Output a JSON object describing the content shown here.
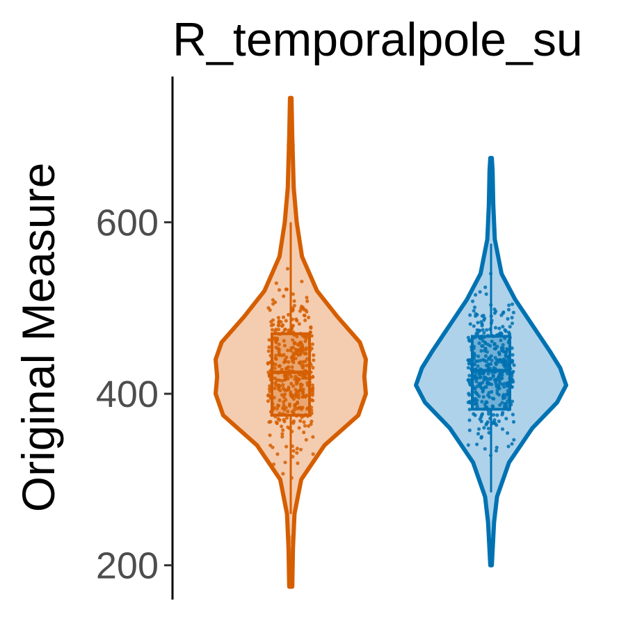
{
  "chart_data": {
    "type": "violin",
    "title": "R_temporalpole_su",
    "xlabel": "",
    "ylabel": "Original Measure",
    "ylim": [
      160,
      770
    ],
    "yticks": [
      200,
      400,
      600
    ],
    "grid": false,
    "legend": "none",
    "groups": [
      {
        "color": "#d55e00",
        "fill": "#f4ccb0",
        "ymin": 175,
        "ymax": 745,
        "whisker_low": 260,
        "q1": 375,
        "median": 425,
        "q3": 470,
        "whisker_high": 600,
        "outliers": [
          230,
          690
        ],
        "density": [
          [
            175,
            0.02
          ],
          [
            220,
            0.03
          ],
          [
            260,
            0.05
          ],
          [
            300,
            0.14
          ],
          [
            340,
            0.45
          ],
          [
            375,
            0.9
          ],
          [
            400,
            1.0
          ],
          [
            420,
            0.98
          ],
          [
            440,
            1.0
          ],
          [
            460,
            0.92
          ],
          [
            490,
            0.62
          ],
          [
            520,
            0.35
          ],
          [
            560,
            0.15
          ],
          [
            600,
            0.08
          ],
          [
            640,
            0.04
          ],
          [
            700,
            0.02
          ],
          [
            745,
            0.01
          ]
        ]
      },
      {
        "color": "#0072b2",
        "fill": "#aed2ea",
        "ymin": 200,
        "ymax": 675,
        "whisker_low": 285,
        "q1": 382,
        "median": 427,
        "q3": 467,
        "whisker_high": 575,
        "outliers": [
          625
        ],
        "density": [
          [
            200,
            0.01
          ],
          [
            250,
            0.04
          ],
          [
            280,
            0.08
          ],
          [
            320,
            0.24
          ],
          [
            360,
            0.55
          ],
          [
            390,
            0.88
          ],
          [
            410,
            1.0
          ],
          [
            430,
            0.92
          ],
          [
            450,
            0.78
          ],
          [
            480,
            0.55
          ],
          [
            510,
            0.32
          ],
          [
            540,
            0.14
          ],
          [
            580,
            0.05
          ],
          [
            620,
            0.03
          ],
          [
            660,
            0.02
          ],
          [
            675,
            0.01
          ]
        ]
      }
    ]
  }
}
